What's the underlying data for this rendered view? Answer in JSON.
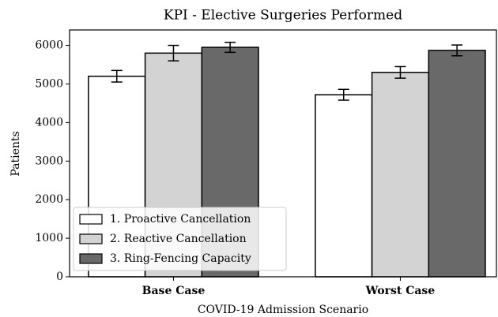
{
  "chart_data": {
    "type": "bar",
    "title": "KPI - Elective Surgeries Performed",
    "x_label": "COVID-19 Admission Scenario",
    "y_label": "Patients",
    "categories": [
      "Base Case",
      "Worst Case"
    ],
    "series": [
      {
        "name": "1. Proactive Cancellation",
        "color": "#ffffff",
        "values": [
          5200,
          4720
        ],
        "errors": [
          150,
          140
        ]
      },
      {
        "name": "2. Reactive Cancellation",
        "color": "#d3d3d3",
        "values": [
          5800,
          5300
        ],
        "errors": [
          200,
          150
        ]
      },
      {
        "name": "3. Ring-Fencing Capacity",
        "color": "#696969",
        "values": [
          5950,
          5870
        ],
        "errors": [
          130,
          140
        ]
      }
    ],
    "ylim": [
      0,
      6400
    ],
    "yticks": [
      0,
      1000,
      2000,
      3000,
      4000,
      5000,
      6000
    ],
    "legend": "lower left"
  }
}
